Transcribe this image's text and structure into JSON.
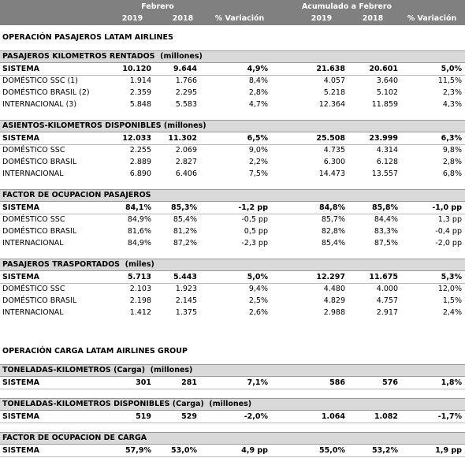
{
  "header": {
    "period": "Febrero",
    "accumulated": "Acumulado a Febrero",
    "columns": [
      "2019",
      "2018",
      "% Variación",
      "2019",
      "2018",
      "% Variación"
    ]
  },
  "groups": [
    {
      "title": "OPERACIÓN PASAJEROS LATAM AIRLINES",
      "sections": [
        {
          "title": "PASAJEROS KILOMETROS RENTADOS  (millones)",
          "rows": [
            [
              "SISTEMA",
              "10.120",
              "9.644",
              "4,9%",
              "21.638",
              "20.601",
              "5,0%"
            ],
            [
              "DOMÉSTICO SSC (1)",
              "1.914",
              "1.766",
              "8,4%",
              "4.057",
              "3.640",
              "11,5%"
            ],
            [
              "DOMÉSTICO BRASIL (2)",
              "2.359",
              "2.295",
              "2,8%",
              "5.218",
              "5.102",
              "2,3%"
            ],
            [
              "INTERNACIONAL (3)",
              "5.848",
              "5.583",
              "4,7%",
              "12.364",
              "11.859",
              "4,3%"
            ]
          ]
        },
        {
          "title": "ASIENTOS-KILOMETROS DISPONIBLES (millones)",
          "rows": [
            [
              "SISTEMA",
              "12.033",
              "11.302",
              "6,5%",
              "25.508",
              "23.999",
              "6,3%"
            ],
            [
              "DOMÉSTICO SSC",
              "2.255",
              "2.069",
              "9,0%",
              "4.735",
              "4.314",
              "9,8%"
            ],
            [
              "DOMÉSTICO BRASIL",
              "2.889",
              "2.827",
              "2,2%",
              "6.300",
              "6.128",
              "2,8%"
            ],
            [
              "INTERNACIONAL",
              "6.890",
              "6.406",
              "7,5%",
              "14.473",
              "13.557",
              "6,8%"
            ]
          ]
        },
        {
          "title": "FACTOR DE OCUPACION PASAJEROS",
          "rows": [
            [
              "SISTEMA",
              "84,1%",
              "85,3%",
              "-1,2 pp",
              "84,8%",
              "85,8%",
              "-1,0 pp"
            ],
            [
              "DOMÉSTICO SSC",
              "84,9%",
              "85,4%",
              "-0,5 pp",
              "85,7%",
              "84,4%",
              "1,3 pp"
            ],
            [
              "DOMÉSTICO BRASIL",
              "81,6%",
              "81,2%",
              "0,5 pp",
              "82,8%",
              "83,3%",
              "-0,4 pp"
            ],
            [
              "INTERNACIONAL",
              "84,9%",
              "87,2%",
              "-2,3 pp",
              "85,4%",
              "87,5%",
              "-2,0 pp"
            ]
          ]
        },
        {
          "title": "PASAJEROS TRASPORTADOS  (miles)",
          "rows": [
            [
              "SISTEMA",
              "5.713",
              "5.443",
              "5,0%",
              "12.297",
              "11.675",
              "5,3%"
            ],
            [
              "DOMÉSTICO SSC",
              "2.103",
              "1.923",
              "9,4%",
              "4.480",
              "4.000",
              "12,0%"
            ],
            [
              "DOMÉSTICO BRASIL",
              "2.198",
              "2.145",
              "2,5%",
              "4.829",
              "4.757",
              "1,5%"
            ],
            [
              "INTERNACIONAL",
              "1.412",
              "1.375",
              "2,6%",
              "2.988",
              "2.917",
              "2,4%"
            ]
          ]
        }
      ]
    },
    {
      "title": "OPERACIÓN CARGA LATAM AIRLINES GROUP",
      "sections": [
        {
          "title": "TONELADAS-KILOMETROS (Carga)  (millones)",
          "rows": [
            [
              "SISTEMA",
              "301",
              "281",
              "7,1%",
              "586",
              "576",
              "1,8%"
            ]
          ]
        },
        {
          "title": "TONELADAS-KILOMETROS DISPONIBLES (Carga)  (millones)",
          "rows": [
            [
              "SISTEMA",
              "519",
              "529",
              "-2,0%",
              "1.064",
              "1.082",
              "-1,7%"
            ]
          ]
        },
        {
          "title": "FACTOR DE OCUPACION DE CARGA",
          "rows": [
            [
              "SISTEMA",
              "57,9%",
              "53,0%",
              "4,9 pp",
              "55,0%",
              "53,2%",
              "1,9 pp"
            ]
          ]
        }
      ]
    }
  ]
}
